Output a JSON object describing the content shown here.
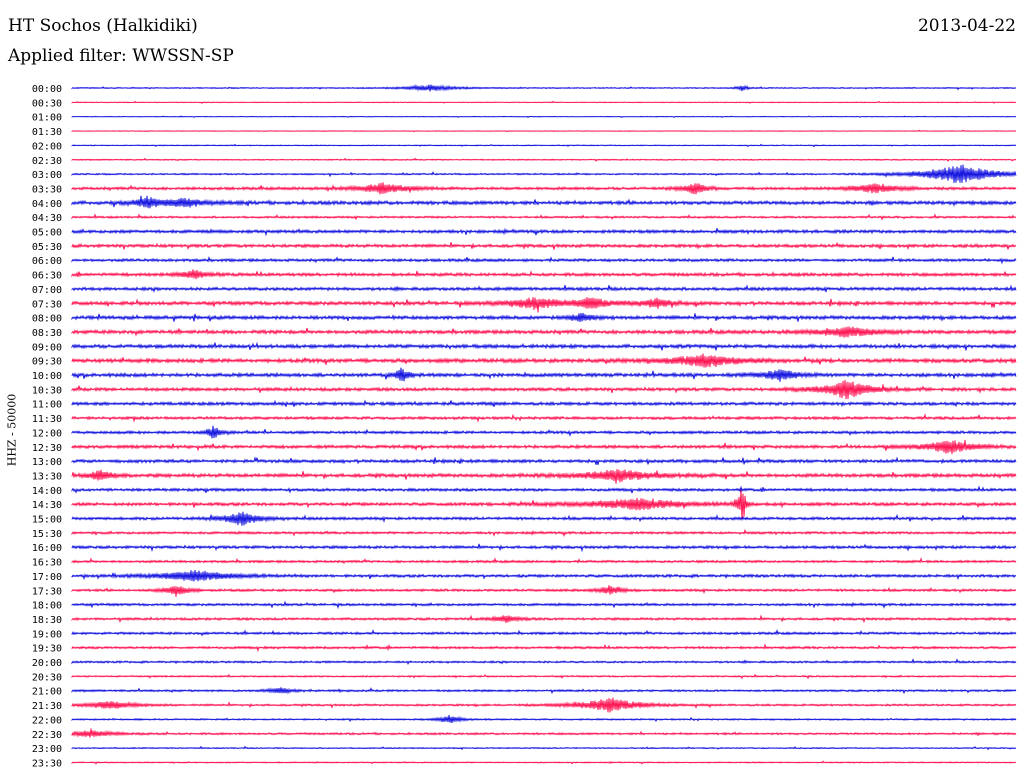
{
  "header": {
    "station": "HT Sochos (Halkidiki)",
    "date": "2013-04-22",
    "filter": "Applied filter: WWSSN-SP"
  },
  "chart_data": {
    "type": "line",
    "title": "HT Sochos (Halkidiki)",
    "ylabel": "HHZ - 50000",
    "colors": {
      "even": "#0000dd",
      "odd": "#ff0044"
    },
    "rows": [
      "00:00",
      "00:30",
      "01:00",
      "01:30",
      "02:00",
      "02:30",
      "03:00",
      "03:30",
      "04:00",
      "04:30",
      "05:00",
      "05:30",
      "06:00",
      "06:30",
      "07:00",
      "07:30",
      "08:00",
      "08:30",
      "09:00",
      "09:30",
      "10:00",
      "10:30",
      "11:00",
      "11:30",
      "12:00",
      "12:30",
      "13:00",
      "13:30",
      "14:00",
      "14:30",
      "15:00",
      "15:30",
      "16:00",
      "16:30",
      "17:00",
      "17:30",
      "18:00",
      "18:30",
      "19:00",
      "19:30",
      "20:00",
      "20:30",
      "21:00",
      "21:30",
      "22:00",
      "22:30",
      "23:00",
      "23:30"
    ],
    "noise_level": [
      0.15,
      0.1,
      0.08,
      0.08,
      0.12,
      0.15,
      0.2,
      0.35,
      0.45,
      0.25,
      0.4,
      0.4,
      0.35,
      0.4,
      0.4,
      0.45,
      0.45,
      0.45,
      0.45,
      0.5,
      0.45,
      0.4,
      0.4,
      0.35,
      0.35,
      0.4,
      0.4,
      0.45,
      0.35,
      0.4,
      0.35,
      0.3,
      0.35,
      0.3,
      0.35,
      0.3,
      0.3,
      0.3,
      0.3,
      0.3,
      0.25,
      0.2,
      0.25,
      0.25,
      0.2,
      0.25,
      0.15,
      0.15
    ],
    "events": [
      {
        "row": 0,
        "x": 0.38,
        "amp": 0.6,
        "w": 0.02
      },
      {
        "row": 0,
        "x": 0.71,
        "amp": 0.5,
        "w": 0.005
      },
      {
        "row": 6,
        "x": 0.94,
        "amp": 1.8,
        "w": 0.03
      },
      {
        "row": 7,
        "x": 0.33,
        "amp": 1.0,
        "w": 0.02
      },
      {
        "row": 7,
        "x": 0.66,
        "amp": 1.1,
        "w": 0.01
      },
      {
        "row": 7,
        "x": 0.85,
        "amp": 0.8,
        "w": 0.02
      },
      {
        "row": 8,
        "x": 0.08,
        "amp": 1.0,
        "w": 0.01
      },
      {
        "row": 8,
        "x": 0.12,
        "amp": 0.7,
        "w": 0.02
      },
      {
        "row": 13,
        "x": 0.13,
        "amp": 0.9,
        "w": 0.01
      },
      {
        "row": 15,
        "x": 0.49,
        "amp": 1.0,
        "w": 0.02
      },
      {
        "row": 15,
        "x": 0.55,
        "amp": 1.0,
        "w": 0.015
      },
      {
        "row": 15,
        "x": 0.62,
        "amp": 0.8,
        "w": 0.015
      },
      {
        "row": 16,
        "x": 0.54,
        "amp": 0.7,
        "w": 0.01
      },
      {
        "row": 17,
        "x": 0.82,
        "amp": 0.9,
        "w": 0.025
      },
      {
        "row": 19,
        "x": 0.67,
        "amp": 1.2,
        "w": 0.025
      },
      {
        "row": 20,
        "x": 0.35,
        "amp": 1.5,
        "w": 0.005
      },
      {
        "row": 20,
        "x": 0.75,
        "amp": 1.0,
        "w": 0.015
      },
      {
        "row": 21,
        "x": 0.82,
        "amp": 1.8,
        "w": 0.02
      },
      {
        "row": 24,
        "x": 0.15,
        "amp": 1.3,
        "w": 0.005
      },
      {
        "row": 25,
        "x": 0.93,
        "amp": 1.2,
        "w": 0.02
      },
      {
        "row": 27,
        "x": 0.03,
        "amp": 0.9,
        "w": 0.01
      },
      {
        "row": 27,
        "x": 0.58,
        "amp": 1.0,
        "w": 0.03
      },
      {
        "row": 29,
        "x": 0.6,
        "amp": 1.0,
        "w": 0.04
      },
      {
        "row": 29,
        "x": 0.71,
        "amp": 3.5,
        "w": 0.003
      },
      {
        "row": 30,
        "x": 0.18,
        "amp": 1.2,
        "w": 0.015
      },
      {
        "row": 34,
        "x": 0.13,
        "amp": 1.0,
        "w": 0.03
      },
      {
        "row": 35,
        "x": 0.11,
        "amp": 1.0,
        "w": 0.01
      },
      {
        "row": 35,
        "x": 0.57,
        "amp": 0.8,
        "w": 0.01
      },
      {
        "row": 37,
        "x": 0.46,
        "amp": 0.7,
        "w": 0.01
      },
      {
        "row": 42,
        "x": 0.22,
        "amp": 0.6,
        "w": 0.01
      },
      {
        "row": 43,
        "x": 0.04,
        "amp": 0.7,
        "w": 0.02
      },
      {
        "row": 43,
        "x": 0.57,
        "amp": 1.3,
        "w": 0.025
      },
      {
        "row": 44,
        "x": 0.4,
        "amp": 0.7,
        "w": 0.01
      },
      {
        "row": 45,
        "x": 0.02,
        "amp": 0.6,
        "w": 0.02
      }
    ]
  }
}
